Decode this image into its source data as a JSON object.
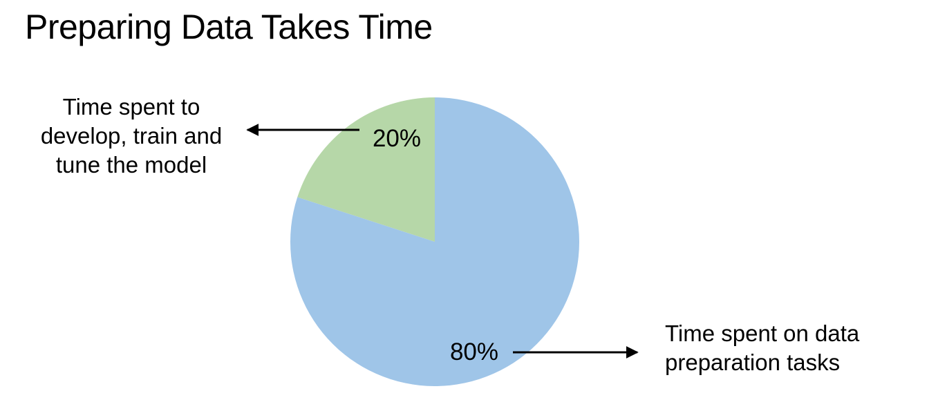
{
  "title": "Preparing Data Takes Time",
  "chart_data": {
    "type": "pie",
    "title": "Preparing Data Takes Time",
    "slices": [
      {
        "label": "20%",
        "value": 20,
        "color": "#b6d7a8",
        "annotation": [
          "Time spent to",
          "develop, train and",
          "tune the model"
        ]
      },
      {
        "label": "80%",
        "value": 80,
        "color": "#9fc5e8",
        "annotation": [
          "Time spent on data",
          "preparation tasks"
        ]
      }
    ],
    "start_angle": "12 o'clock, clockwise from the green slice going counter-clockwise",
    "legend": "none"
  },
  "colors": {
    "background": "#ffffff",
    "text": "#000000",
    "arrow": "#000000"
  }
}
